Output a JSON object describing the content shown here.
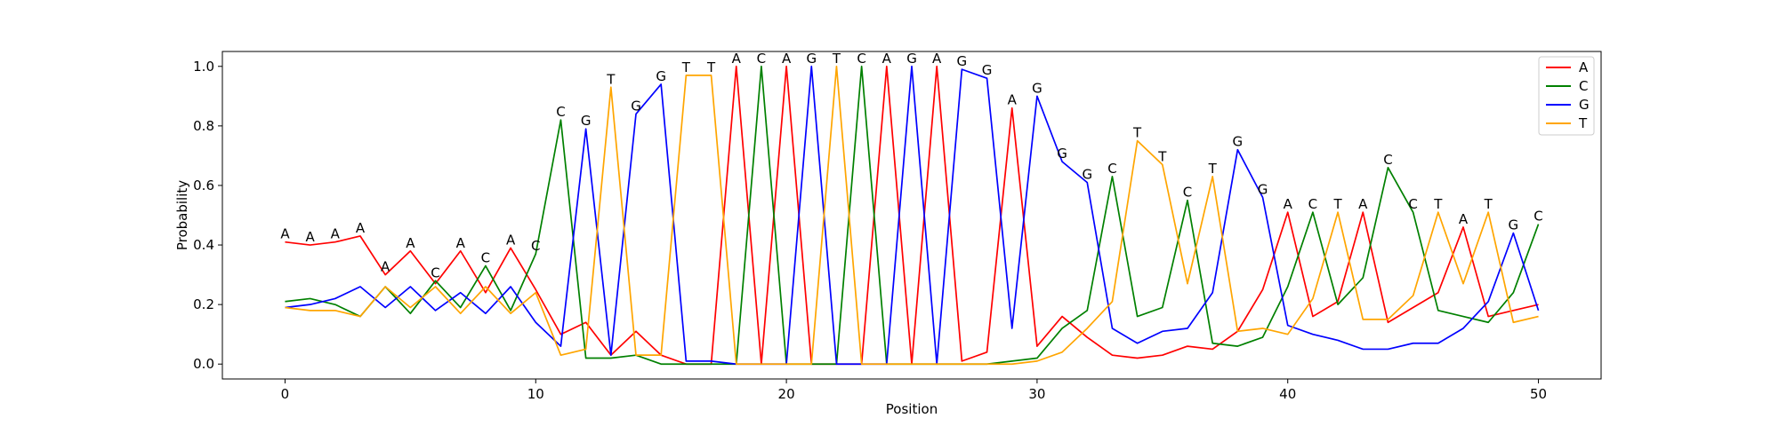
{
  "chart_data": {
    "type": "line",
    "title": "",
    "xlabel": "Position",
    "ylabel": "Probability",
    "xlim": [
      -2.5,
      52.5
    ],
    "ylim": [
      -0.05,
      1.05
    ],
    "xticks": [
      0,
      10,
      20,
      30,
      40,
      50
    ],
    "yticks": [
      0.0,
      0.2,
      0.4,
      0.6,
      0.8,
      1.0
    ],
    "xtick_labels": [
      "0",
      "10",
      "20",
      "30",
      "40",
      "50"
    ],
    "ytick_labels": [
      "0.0",
      "0.2",
      "0.4",
      "0.6",
      "0.8",
      "1.0"
    ],
    "grid": false,
    "legend_position": "top-right",
    "x": [
      0,
      1,
      2,
      3,
      4,
      5,
      6,
      7,
      8,
      9,
      10,
      11,
      12,
      13,
      14,
      15,
      16,
      17,
      18,
      19,
      20,
      21,
      22,
      23,
      24,
      25,
      26,
      27,
      28,
      29,
      30,
      31,
      32,
      33,
      34,
      35,
      36,
      37,
      38,
      39,
      40,
      41,
      42,
      43,
      44,
      45,
      46,
      47,
      48,
      49,
      50
    ],
    "series": [
      {
        "name": "A",
        "color": "#ff0000",
        "values": [
          0.41,
          0.4,
          0.41,
          0.43,
          0.3,
          0.38,
          0.27,
          0.38,
          0.24,
          0.39,
          0.25,
          0.1,
          0.14,
          0.03,
          0.11,
          0.03,
          0.0,
          0.0,
          1.0,
          0.0,
          1.0,
          0.0,
          0.0,
          0.0,
          1.0,
          0.0,
          1.0,
          0.01,
          0.04,
          0.86,
          0.06,
          0.16,
          0.09,
          0.03,
          0.02,
          0.03,
          0.06,
          0.05,
          0.11,
          0.25,
          0.51,
          0.16,
          0.21,
          0.51,
          0.14,
          0.19,
          0.24,
          0.46,
          0.16,
          0.18,
          0.2
        ]
      },
      {
        "name": "C",
        "color": "#008000",
        "values": [
          0.21,
          0.22,
          0.2,
          0.16,
          0.26,
          0.17,
          0.28,
          0.19,
          0.33,
          0.18,
          0.37,
          0.82,
          0.02,
          0.02,
          0.03,
          0.0,
          0.0,
          0.0,
          0.0,
          1.0,
          0.0,
          0.0,
          0.0,
          1.0,
          0.0,
          0.0,
          0.0,
          0.0,
          0.0,
          0.01,
          0.02,
          0.12,
          0.18,
          0.63,
          0.16,
          0.19,
          0.55,
          0.07,
          0.06,
          0.09,
          0.26,
          0.51,
          0.2,
          0.29,
          0.66,
          0.51,
          0.18,
          0.16,
          0.14,
          0.24,
          0.47
        ]
      },
      {
        "name": "G",
        "color": "#0000ff",
        "values": [
          0.19,
          0.2,
          0.22,
          0.26,
          0.19,
          0.26,
          0.18,
          0.24,
          0.17,
          0.26,
          0.14,
          0.06,
          0.79,
          0.03,
          0.84,
          0.94,
          0.01,
          0.01,
          0.0,
          0.0,
          0.0,
          1.0,
          0.0,
          0.0,
          0.0,
          1.0,
          0.0,
          0.99,
          0.96,
          0.12,
          0.9,
          0.68,
          0.61,
          0.12,
          0.07,
          0.11,
          0.12,
          0.24,
          0.72,
          0.56,
          0.13,
          0.1,
          0.08,
          0.05,
          0.05,
          0.07,
          0.07,
          0.12,
          0.21,
          0.44,
          0.18
        ]
      },
      {
        "name": "T",
        "color": "#ffa500",
        "values": [
          0.19,
          0.18,
          0.18,
          0.16,
          0.26,
          0.19,
          0.26,
          0.17,
          0.26,
          0.17,
          0.24,
          0.03,
          0.05,
          0.93,
          0.03,
          0.03,
          0.97,
          0.97,
          0.0,
          0.0,
          0.0,
          0.0,
          1.0,
          0.0,
          0.0,
          0.0,
          0.0,
          0.0,
          0.0,
          0.0,
          0.01,
          0.04,
          0.12,
          0.21,
          0.75,
          0.67,
          0.27,
          0.63,
          0.11,
          0.12,
          0.1,
          0.22,
          0.51,
          0.15,
          0.15,
          0.23,
          0.51,
          0.27,
          0.51,
          0.14,
          0.16
        ]
      }
    ],
    "annotations": {
      "x": [
        0,
        1,
        2,
        3,
        4,
        5,
        6,
        7,
        8,
        9,
        10,
        11,
        12,
        13,
        14,
        15,
        16,
        17,
        18,
        19,
        20,
        21,
        22,
        23,
        24,
        25,
        26,
        27,
        28,
        29,
        30,
        31,
        32,
        33,
        34,
        35,
        36,
        37,
        38,
        39,
        40,
        41,
        42,
        43,
        44,
        45,
        46,
        47,
        48,
        49,
        50
      ],
      "labels": [
        "A",
        "A",
        "A",
        "A",
        "A",
        "A",
        "C",
        "A",
        "C",
        "A",
        "C",
        "C",
        "G",
        "T",
        "G",
        "G",
        "T",
        "T",
        "A",
        "C",
        "A",
        "G",
        "T",
        "C",
        "A",
        "G",
        "A",
        "G",
        "G",
        "A",
        "G",
        "G",
        "G",
        "C",
        "T",
        "T",
        "C",
        "T",
        "G",
        "G",
        "A",
        "C",
        "T",
        "A",
        "C",
        "C",
        "T",
        "A",
        "T",
        "G",
        "C"
      ],
      "y": [
        0.41,
        0.4,
        0.41,
        0.43,
        0.3,
        0.38,
        0.28,
        0.38,
        0.33,
        0.39,
        0.37,
        0.82,
        0.79,
        0.93,
        0.84,
        0.94,
        0.97,
        0.97,
        1.0,
        1.0,
        1.0,
        1.0,
        1.0,
        1.0,
        1.0,
        1.0,
        1.0,
        0.99,
        0.96,
        0.86,
        0.9,
        0.68,
        0.61,
        0.63,
        0.75,
        0.67,
        0.55,
        0.63,
        0.72,
        0.56,
        0.51,
        0.51,
        0.51,
        0.51,
        0.66,
        0.51,
        0.51,
        0.46,
        0.51,
        0.44,
        0.47
      ]
    }
  }
}
